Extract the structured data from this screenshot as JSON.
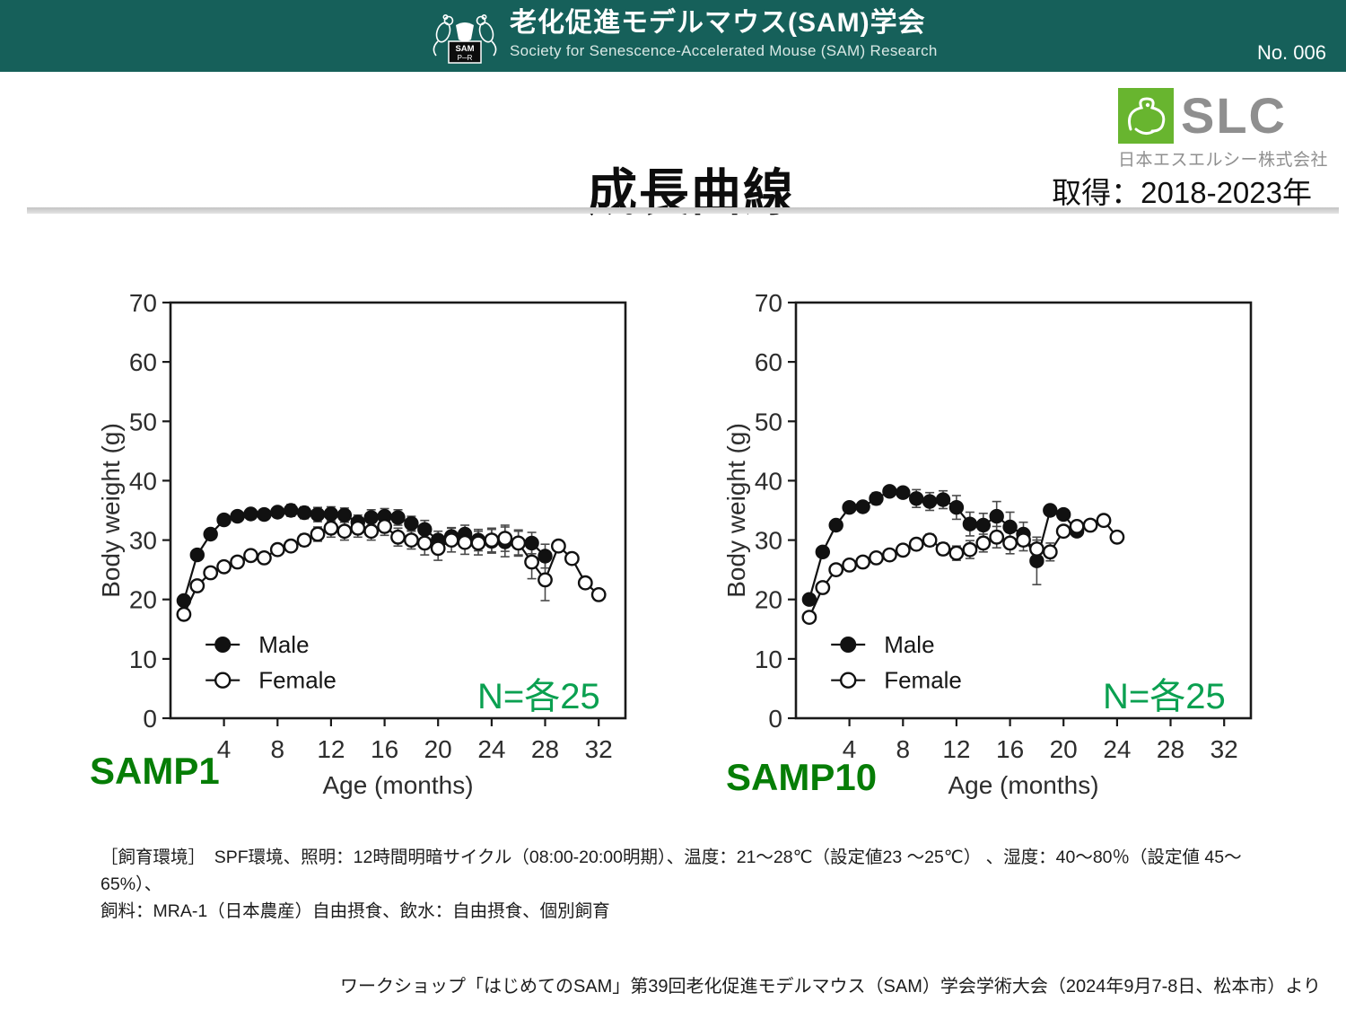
{
  "header": {
    "title": "老化促進モデルマウス(SAM)学会",
    "subtitle": "Society for Senescence-Accelerated Mouse (SAM) Research",
    "page_no": "No. 006",
    "bg_color": "#16605a",
    "logo_text_top": "SAM",
    "logo_text_bottom": "P R"
  },
  "slc": {
    "name": "SLC",
    "company": "日本エスエルシー株式会社",
    "green": "#68b52f",
    "gray": "#8f8f8f"
  },
  "main": {
    "title": "成長曲線",
    "acquisition": "取得：2018-2023年"
  },
  "colors": {
    "strain_label": "#067d06",
    "n_label": "#0aa050",
    "male_marker": "#111111",
    "female_marker_fill": "#ffffff"
  },
  "chart_data": [
    {
      "type": "line",
      "title": "SAMP1",
      "n_label": "N=各25",
      "xlabel": "Age (months)",
      "ylabel": "Body weight (g)",
      "xlim": [
        0,
        34
      ],
      "ylim": [
        0,
        70
      ],
      "xticks": [
        4,
        8,
        12,
        16,
        20,
        24,
        28,
        32
      ],
      "yticks": [
        0,
        10,
        20,
        30,
        40,
        50,
        60,
        70
      ],
      "grid": false,
      "legend_position": "lower-left-inside",
      "series": [
        {
          "name": "Male",
          "marker": "filled",
          "x": [
            1,
            2,
            3,
            4,
            5,
            6,
            7,
            8,
            9,
            10,
            11,
            12,
            13,
            14,
            15,
            16,
            17,
            18,
            19,
            20,
            21,
            22,
            23,
            24,
            25,
            26,
            27,
            28
          ],
          "y": [
            19.8,
            27.5,
            31.0,
            33.4,
            34.0,
            34.4,
            34.3,
            34.7,
            35.0,
            34.6,
            34.3,
            34.4,
            34.2,
            33.0,
            33.8,
            34.0,
            33.8,
            32.8,
            31.8,
            30.0,
            30.6,
            31.0,
            30.0,
            29.8,
            29.7,
            29.5,
            29.5,
            27.3
          ],
          "err": [
            0,
            0,
            0,
            0,
            0,
            0.5,
            0.5,
            0.8,
            1.0,
            1.0,
            1.2,
            1.2,
            1.2,
            1.2,
            1.3,
            1.3,
            1.3,
            1.2,
            1.5,
            1.5,
            1.5,
            1.5,
            1.8,
            2.0,
            2.5,
            2.2,
            1.8,
            2.0
          ]
        },
        {
          "name": "Female",
          "marker": "open",
          "x": [
            1,
            2,
            3,
            4,
            5,
            6,
            7,
            8,
            9,
            10,
            11,
            12,
            13,
            14,
            15,
            16,
            17,
            18,
            19,
            20,
            21,
            22,
            23,
            24,
            25,
            26,
            27,
            28,
            29,
            30,
            31,
            32
          ],
          "y": [
            17.5,
            22.3,
            24.5,
            25.5,
            26.3,
            27.4,
            27.0,
            28.4,
            29.0,
            30.0,
            31.0,
            32.0,
            31.5,
            32.0,
            31.5,
            32.3,
            30.5,
            30.0,
            29.5,
            28.6,
            30.0,
            29.6,
            29.5,
            30.0,
            30.3,
            29.5,
            26.3,
            23.3,
            29.0,
            26.9,
            22.8,
            20.8
          ],
          "err": [
            0,
            0,
            0,
            0,
            0,
            0,
            0,
            0.5,
            0.8,
            1.0,
            1.2,
            1.5,
            1.5,
            1.5,
            1.5,
            1.5,
            1.5,
            1.5,
            2.0,
            2.0,
            2.0,
            2.0,
            2.0,
            2.0,
            2.2,
            2.0,
            2.8,
            3.5,
            0,
            0,
            0,
            0
          ]
        }
      ]
    },
    {
      "type": "line",
      "title": "SAMP10",
      "n_label": "N=各25",
      "xlabel": "Age (months)",
      "ylabel": "Body weight (g)",
      "xlim": [
        0,
        34
      ],
      "ylim": [
        0,
        70
      ],
      "xticks": [
        4,
        8,
        12,
        16,
        20,
        24,
        28,
        32
      ],
      "yticks": [
        0,
        10,
        20,
        30,
        40,
        50,
        60,
        70
      ],
      "grid": false,
      "legend_position": "lower-left-inside",
      "series": [
        {
          "name": "Male",
          "marker": "filled",
          "x": [
            1,
            2,
            3,
            4,
            5,
            6,
            7,
            8,
            9,
            10,
            11,
            12,
            13,
            14,
            15,
            16,
            17,
            18,
            19,
            20,
            21
          ],
          "y": [
            20.0,
            28.0,
            32.5,
            35.5,
            35.6,
            37.0,
            38.2,
            38.0,
            37.0,
            36.5,
            36.8,
            35.5,
            32.7,
            32.5,
            34.0,
            32.2,
            31.0,
            26.5,
            35.0,
            34.3,
            31.5
          ],
          "err": [
            0,
            0,
            0,
            0,
            0.8,
            1.0,
            0.8,
            0.8,
            1.5,
            1.5,
            1.5,
            2.0,
            2.0,
            2.0,
            2.5,
            2.5,
            2.0,
            4.0,
            0,
            0,
            0
          ]
        },
        {
          "name": "Female",
          "marker": "open",
          "x": [
            1,
            2,
            3,
            4,
            5,
            6,
            7,
            8,
            9,
            10,
            11,
            12,
            13,
            14,
            15,
            16,
            17,
            18,
            19,
            20,
            21,
            22,
            23,
            24
          ],
          "y": [
            17.0,
            22.0,
            25.0,
            25.8,
            26.3,
            27.0,
            27.5,
            28.3,
            29.3,
            30.0,
            28.5,
            27.8,
            28.4,
            29.5,
            30.5,
            29.5,
            30.0,
            28.5,
            28.0,
            31.5,
            32.3,
            32.5,
            33.3,
            30.5
          ],
          "err": [
            0,
            0,
            0,
            0,
            0,
            0,
            0,
            0.5,
            0.8,
            1.0,
            1.0,
            1.2,
            1.5,
            1.5,
            1.8,
            1.8,
            1.8,
            1.5,
            1.5,
            0.8,
            0,
            0,
            0,
            0
          ]
        }
      ]
    }
  ],
  "footer": {
    "line1": "［飼育環境］　SPF環境、照明：12時間明暗サイクル（08:00-20:00明期）、温度：21～28℃（設定値23 ～25℃） 、湿度：40～80％（設定値 45～65%）、",
    "line2": "飼料：MRA-1（日本農産）自由摂食、飲水：自由摂食、個別飼育",
    "credit": "ワークショップ「はじめてのSAM」第39回老化促進モデルマウス（SAM）学会学術大会（2024年9月7-8日、松本市）より"
  }
}
